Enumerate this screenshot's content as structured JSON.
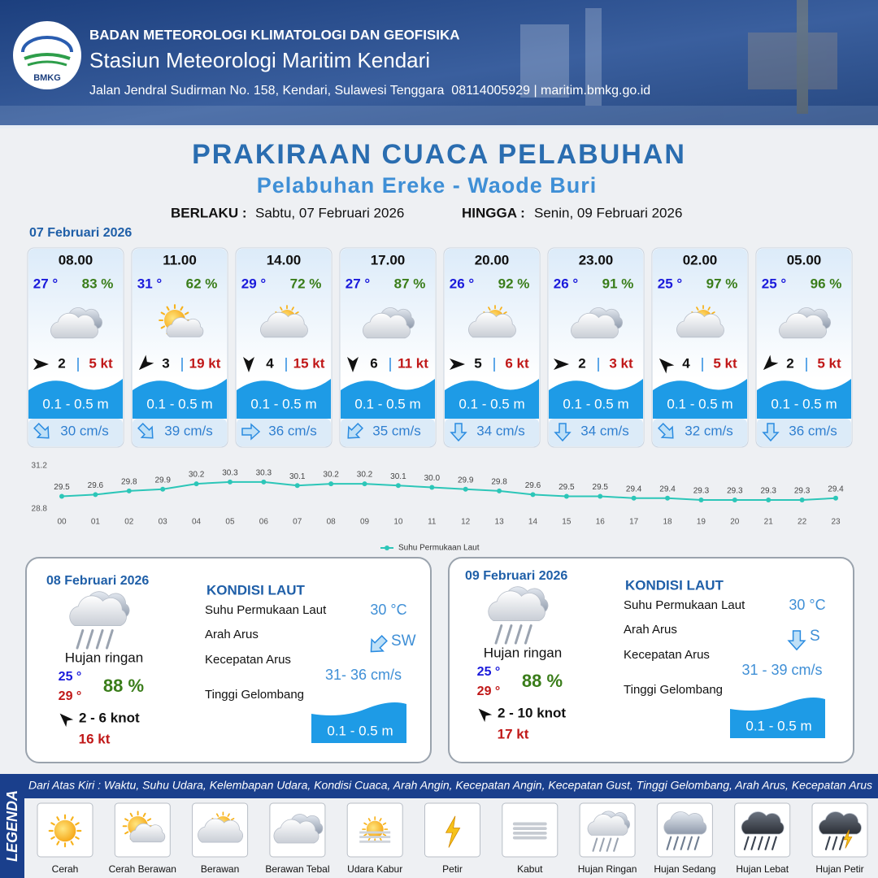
{
  "header": {
    "logo_text": "BMKG",
    "org": "BADAN METEOROLOGI KLIMATOLOGI DAN GEOFISIKA",
    "station": "Stasiun Meteorologi Maritim Kendari",
    "address": "Jalan Jendral Sudirman No. 158, Kendari, Sulawesi Tenggara  08114005929 | maritim.bmkg.go.id"
  },
  "title": "PRAKIRAAN CUACA PELABUHAN",
  "subtitle": "Pelabuhan Ereke - Waode Buri",
  "validity": {
    "from_label": "BERLAKU :",
    "from": "Sabtu, 07 Februari 2026",
    "to_label": "HINGGA :",
    "to": "Senin, 09 Februari 2026"
  },
  "day1_date": "07 Februari 2026",
  "forecasts": [
    {
      "time": "08.00",
      "temp": "27 °",
      "humidity": "83 %",
      "weather": "Berawan Tebal",
      "wind_deg": 90,
      "wind": "2",
      "gust": "5 kt",
      "wave": "0.1 - 0.5 m",
      "current_deg": 135,
      "current": "30 cm/s"
    },
    {
      "time": "11.00",
      "temp": "31 °",
      "humidity": "62 %",
      "weather": "Cerah Berawan",
      "wind_deg": 225,
      "wind": "3",
      "gust": "19 kt",
      "wave": "0.1 - 0.5 m",
      "current_deg": 135,
      "current": "39 cm/s"
    },
    {
      "time": "14.00",
      "temp": "29 °",
      "humidity": "72 %",
      "weather": "Berawan",
      "wind_deg": 180,
      "wind": "4",
      "gust": "15 kt",
      "wave": "0.1 - 0.5 m",
      "current_deg": 90,
      "current": "36 cm/s"
    },
    {
      "time": "17.00",
      "temp": "27 °",
      "humidity": "87 %",
      "weather": "Berawan Tebal",
      "wind_deg": 180,
      "wind": "6",
      "gust": "11 kt",
      "wave": "0.1 - 0.5 m",
      "current_deg": 225,
      "current": "35 cm/s"
    },
    {
      "time": "20.00",
      "temp": "26 °",
      "humidity": "92 %",
      "weather": "Berawan",
      "wind_deg": 90,
      "wind": "5",
      "gust": "6 kt",
      "wave": "0.1 - 0.5 m",
      "current_deg": 180,
      "current": "34 cm/s"
    },
    {
      "time": "23.00",
      "temp": "26 °",
      "humidity": "91 %",
      "weather": "Berawan Tebal",
      "wind_deg": 90,
      "wind": "2",
      "gust": "3 kt",
      "wave": "0.1 - 0.5 m",
      "current_deg": 180,
      "current": "34 cm/s"
    },
    {
      "time": "02.00",
      "temp": "25 °",
      "humidity": "97 %",
      "weather": "Berawan",
      "wind_deg": 315,
      "wind": "4",
      "gust": "5 kt",
      "wave": "0.1 - 0.5 m",
      "current_deg": 135,
      "current": "32 cm/s"
    },
    {
      "time": "05.00",
      "temp": "25 °",
      "humidity": "96 %",
      "weather": "Berawan Tebal",
      "wind_deg": 225,
      "wind": "2",
      "gust": "5 kt",
      "wave": "0.1 - 0.5 m",
      "current_deg": 180,
      "current": "36 cm/s"
    }
  ],
  "chart_data": {
    "type": "line",
    "categories": [
      "00",
      "01",
      "02",
      "03",
      "04",
      "05",
      "06",
      "07",
      "08",
      "09",
      "10",
      "11",
      "12",
      "13",
      "14",
      "15",
      "16",
      "17",
      "18",
      "19",
      "20",
      "21",
      "22",
      "23"
    ],
    "series": [
      {
        "name": "Suhu Permukaan Laut",
        "color": "#2cc6b8",
        "values": [
          29.5,
          29.6,
          29.8,
          29.9,
          30.2,
          30.3,
          30.3,
          30.1,
          30.2,
          30.2,
          30.1,
          30.0,
          29.9,
          29.8,
          29.6,
          29.5,
          29.5,
          29.4,
          29.4,
          29.3,
          29.3,
          29.3,
          29.3,
          29.4
        ],
        "value_labels": [
          "29.5",
          "29.6",
          "29.8",
          "29.9",
          "30.2",
          "30.3",
          "30.3",
          "30.1",
          "30.2",
          "30.2",
          "30.1",
          "30.0",
          "29.9",
          "29.8",
          "29.6",
          "29.5",
          "29.5",
          "29.4",
          "29.4",
          "29.3",
          "29.3",
          "29.3",
          "29.3",
          "29.4"
        ]
      }
    ],
    "ylim": [
      28.8,
      31.2
    ],
    "yticks": [
      28.8,
      31.2
    ],
    "grid": false
  },
  "days": [
    {
      "date": "08 Februari 2026",
      "weather": "Hujan ringan",
      "temp_min": "25 °",
      "temp_max": "29 °",
      "humidity": "88 %",
      "wind_deg": 315,
      "wind": "2  - 6 knot",
      "gust": "16 kt",
      "sea": {
        "heading": "KONDISI LAUT",
        "sst_label": "Suhu Permukaan Laut",
        "dir_label": "Arah Arus",
        "speed_label": "Kecepatan Arus",
        "wave_label": "Tinggi Gelombang",
        "sst": "30 °C",
        "current_deg": 225,
        "current_dir": "SW",
        "current_speed": "31- 36 cm/s",
        "wave": "0.1 - 0.5 m"
      }
    },
    {
      "date": "09 Februari 2026",
      "weather": "Hujan ringan",
      "temp_min": "25 °",
      "temp_max": "29 °",
      "humidity": "88 %",
      "wind_deg": 315,
      "wind": "2  - 10 knot",
      "gust": "17 kt",
      "sea": {
        "heading": "KONDISI LAUT",
        "sst_label": "Suhu Permukaan Laut",
        "dir_label": "Arah Arus",
        "speed_label": "Kecepatan Arus",
        "wave_label": "Tinggi Gelombang",
        "sst": "30 °C",
        "current_deg": 180,
        "current_dir": "S",
        "current_speed": "31 - 39 cm/s",
        "wave": "0.1 - 0.5 m"
      }
    }
  ],
  "legend": {
    "label": "LEGENDA",
    "description": "Dari Atas Kiri : Waktu, Suhu Udara, Kelembapan Udara, Kondisi Cuaca, Arah Angin, Kecepatan Angin, Kecepatan Gust, Tinggi Gelombang, Arah Arus, Kecepatan Arus",
    "items": [
      "Cerah",
      "Cerah Berawan",
      "Berawan",
      "Berawan Tebal",
      "Udara Kabur",
      "Petir",
      "Kabut",
      "Hujan Ringan",
      "Hujan Sedang",
      "Hujan Lebat",
      "Hujan Petir"
    ]
  }
}
